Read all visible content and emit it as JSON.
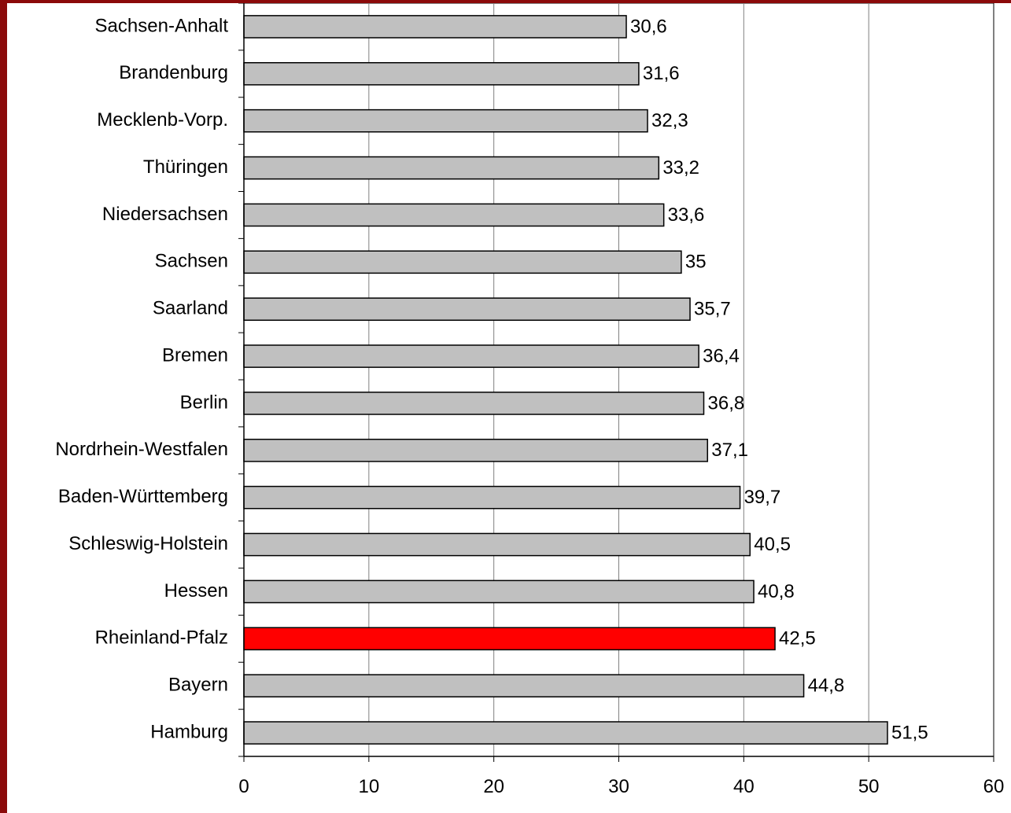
{
  "chart_data": {
    "type": "bar",
    "orientation": "horizontal",
    "categories": [
      "Sachsen-Anhalt",
      "Brandenburg",
      "Mecklenb-Vorp.",
      "Thüringen",
      "Niedersachsen",
      "Sachsen",
      "Saarland",
      "Bremen",
      "Berlin",
      "Nordrhein-Westfalen",
      "Baden-Württemberg",
      "Schleswig-Holstein",
      "Hessen",
      "Rheinland-Pfalz",
      "Bayern",
      "Hamburg"
    ],
    "values": [
      30.6,
      31.6,
      32.3,
      33.2,
      33.6,
      35,
      35.7,
      36.4,
      36.8,
      37.1,
      39.7,
      40.5,
      40.8,
      42.5,
      44.8,
      51.5
    ],
    "value_labels": [
      "30,6",
      "31,6",
      "32,3",
      "33,2",
      "33,6",
      "35",
      "35,7",
      "36,4",
      "36,8",
      "37,1",
      "39,7",
      "40,5",
      "40,8",
      "42,5",
      "44,8",
      "51,5"
    ],
    "highlight_category": "Rheinland-Pfalz",
    "xlim": [
      0,
      60
    ],
    "x_ticks": [
      0,
      10,
      20,
      30,
      40,
      50,
      60
    ],
    "x_tick_labels": [
      "0",
      "10",
      "20",
      "30",
      "40",
      "50",
      "60"
    ],
    "grid": "vertical",
    "legend": "none",
    "title": "",
    "xlabel": "",
    "ylabel": ""
  },
  "colors": {
    "bar_fill": "#c0c0c0",
    "highlight_fill": "#ff0000",
    "bar_stroke": "#000000",
    "grid_line": "#808080",
    "frame_border": "#8b0a0a",
    "background": "#ffffff"
  }
}
